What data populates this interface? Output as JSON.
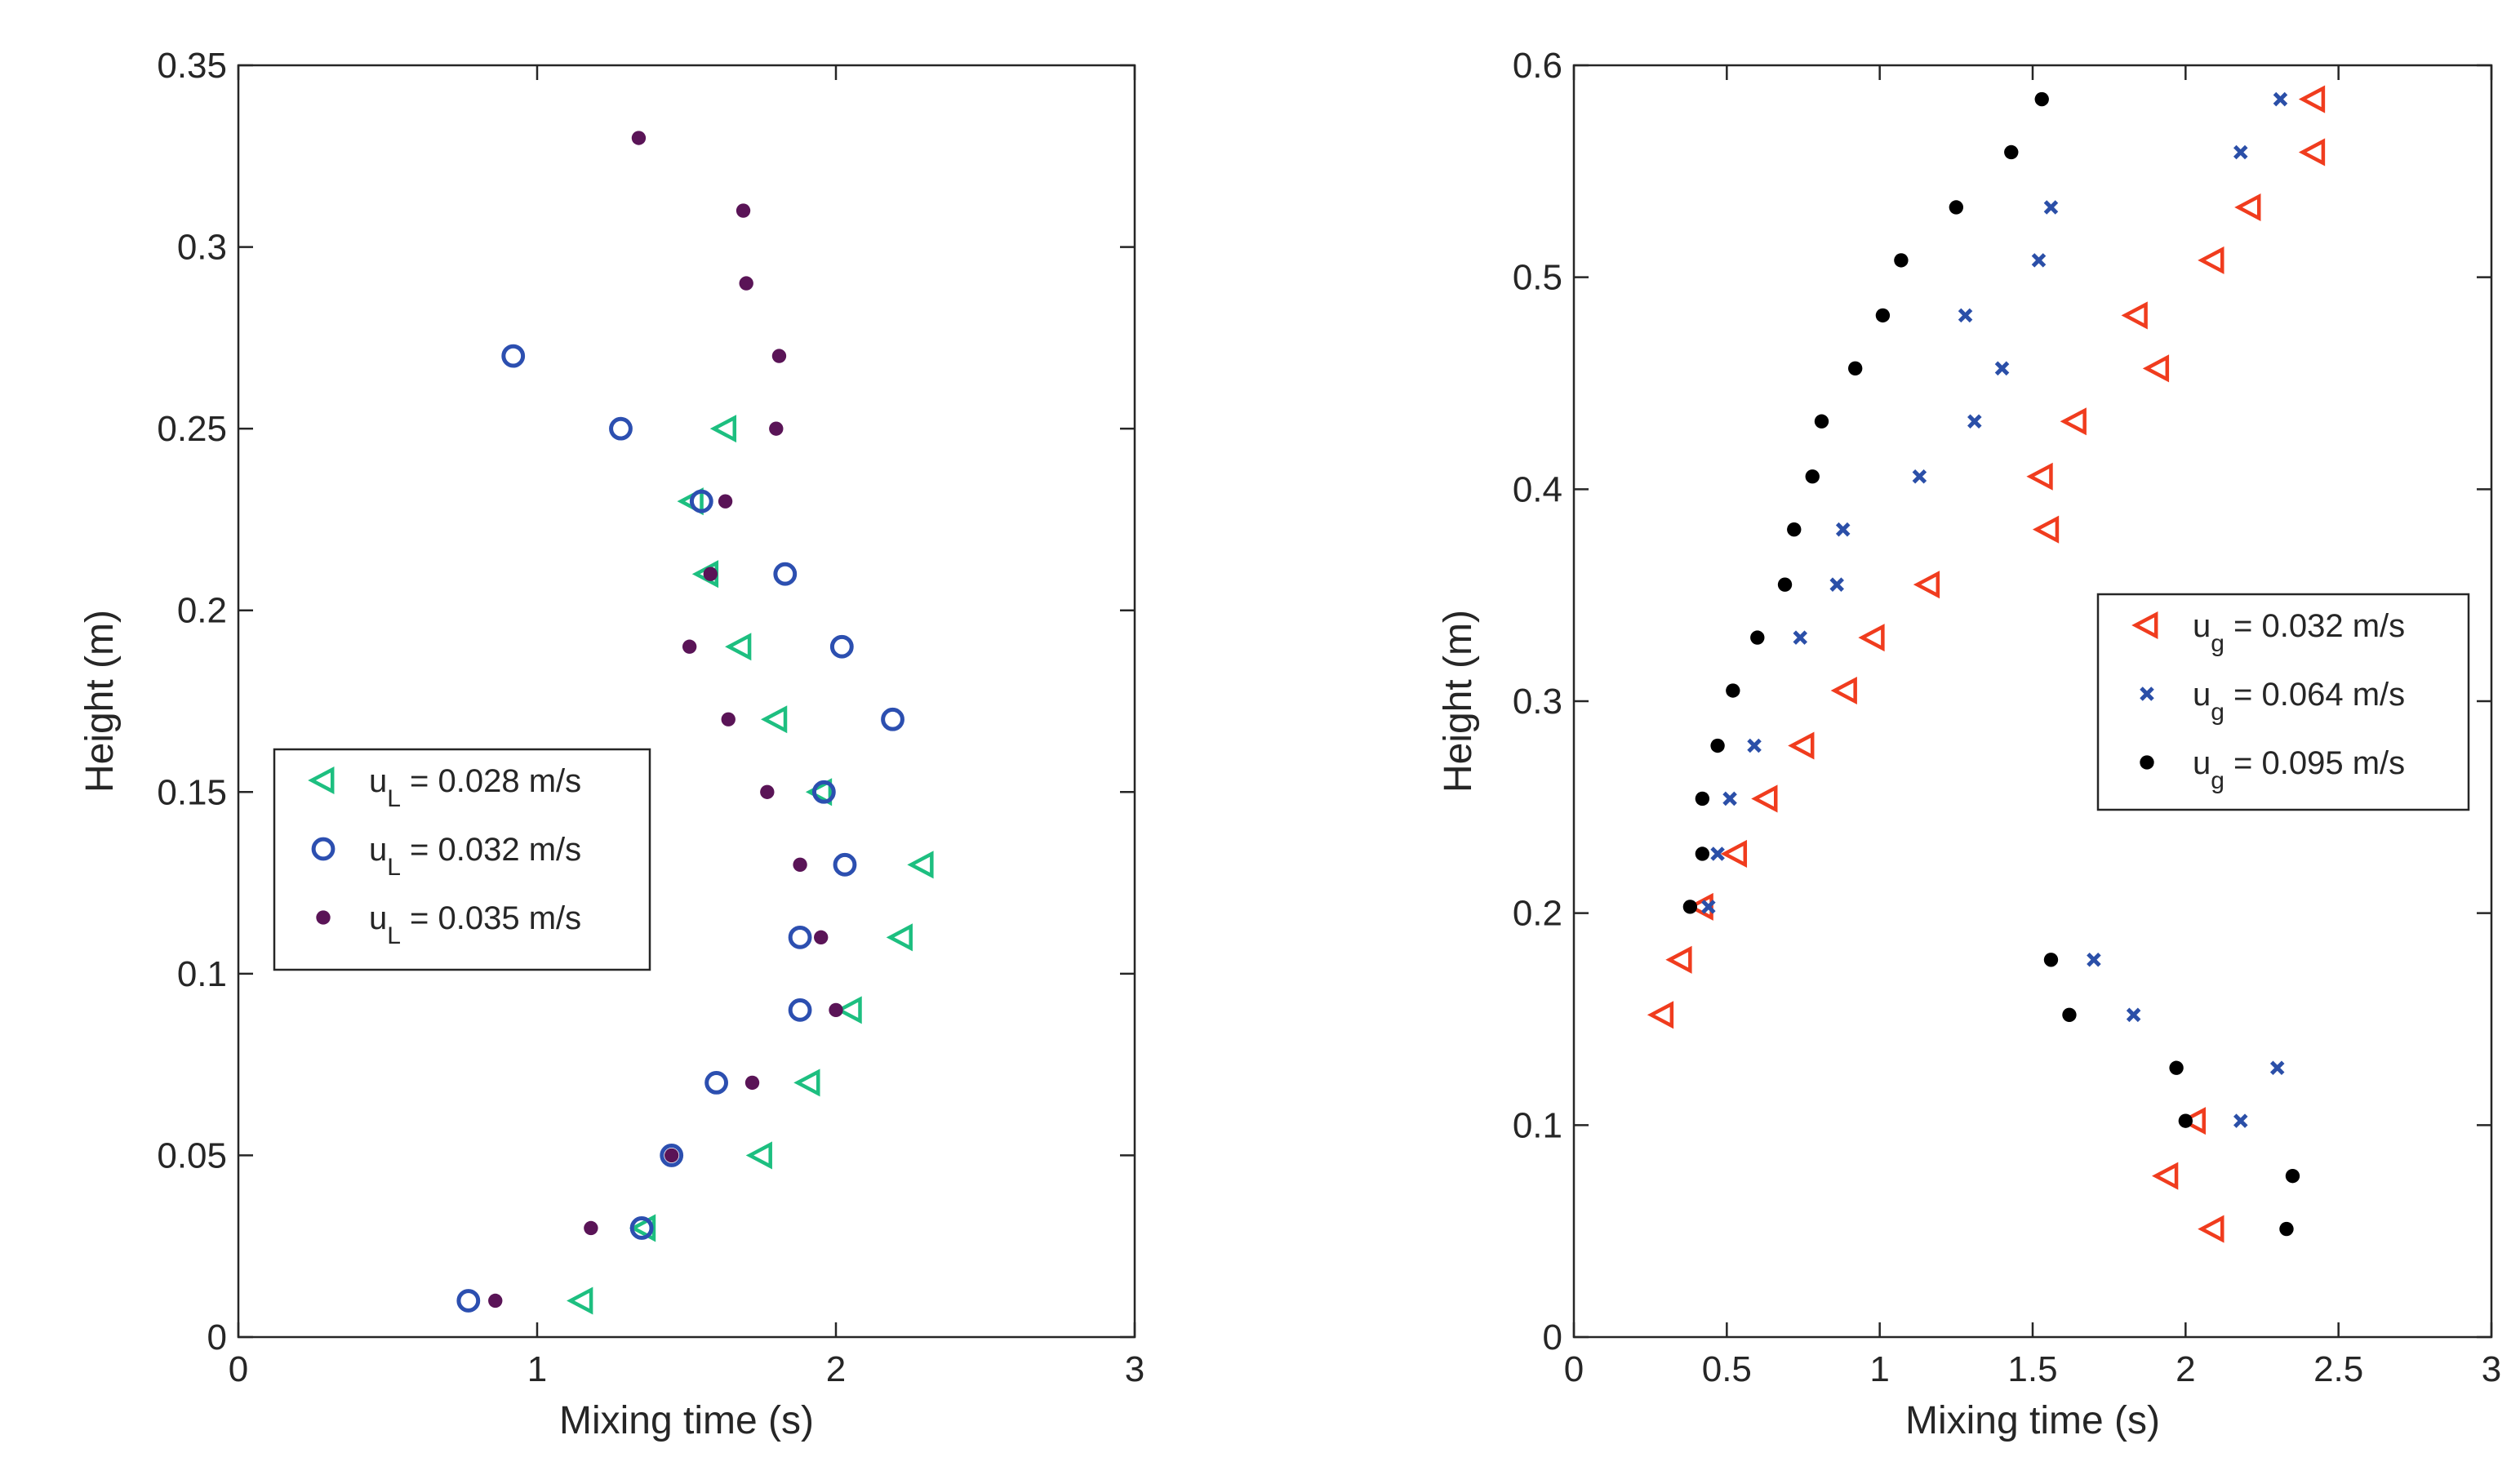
{
  "chart_data": [
    {
      "type": "scatter",
      "title": "",
      "xlabel": "Mixing time (s)",
      "ylabel": "Height (m)",
      "xlim": [
        0,
        3
      ],
      "ylim": [
        0,
        0.35
      ],
      "xticks": [
        "0",
        "1",
        "2",
        "3"
      ],
      "yticks": [
        "0",
        "0.05",
        "0.1",
        "0.15",
        "0.2",
        "0.25",
        "0.3",
        "0.35"
      ],
      "legend_position": "center-left",
      "series": [
        {
          "name": "u_L = 0.028 m/s",
          "label_main": "u",
          "label_sub": "L",
          "label_rest": " = 0.028 m/s",
          "marker": "triangle-left",
          "color": "#1dbf80",
          "points": [
            [
              1.15,
              0.01
            ],
            [
              1.36,
              0.03
            ],
            [
              1.75,
              0.05
            ],
            [
              1.91,
              0.07
            ],
            [
              2.05,
              0.09
            ],
            [
              2.22,
              0.11
            ],
            [
              2.29,
              0.13
            ],
            [
              1.95,
              0.15
            ],
            [
              1.8,
              0.17
            ],
            [
              1.68,
              0.19
            ],
            [
              1.57,
              0.21
            ],
            [
              1.52,
              0.23
            ],
            [
              1.63,
              0.25
            ]
          ]
        },
        {
          "name": "u_L = 0.032 m/s",
          "label_main": "u",
          "label_sub": "L",
          "label_rest": " = 0.032 m/s",
          "marker": "circle-open",
          "color": "#2c4fb0",
          "points": [
            [
              0.77,
              0.01
            ],
            [
              1.35,
              0.03
            ],
            [
              1.45,
              0.05
            ],
            [
              1.6,
              0.07
            ],
            [
              1.88,
              0.09
            ],
            [
              1.88,
              0.11
            ],
            [
              2.03,
              0.13
            ],
            [
              1.96,
              0.15
            ],
            [
              2.19,
              0.17
            ],
            [
              2.02,
              0.19
            ],
            [
              1.83,
              0.21
            ],
            [
              1.55,
              0.23
            ],
            [
              1.28,
              0.25
            ],
            [
              0.92,
              0.27
            ]
          ]
        },
        {
          "name": "u_L = 0.035 m/s",
          "label_main": "u",
          "label_sub": "L",
          "label_rest": " = 0.035 m/s",
          "marker": "dot",
          "color": "#5a1457",
          "points": [
            [
              0.86,
              0.01
            ],
            [
              1.18,
              0.03
            ],
            [
              1.45,
              0.05
            ],
            [
              1.72,
              0.07
            ],
            [
              2.0,
              0.09
            ],
            [
              1.95,
              0.11
            ],
            [
              1.88,
              0.13
            ],
            [
              1.77,
              0.15
            ],
            [
              1.64,
              0.17
            ],
            [
              1.51,
              0.19
            ],
            [
              1.58,
              0.21
            ],
            [
              1.63,
              0.23
            ],
            [
              1.8,
              0.25
            ],
            [
              1.81,
              0.27
            ],
            [
              1.7,
              0.29
            ],
            [
              1.69,
              0.31
            ],
            [
              1.34,
              0.33
            ]
          ]
        }
      ]
    },
    {
      "type": "scatter",
      "title": "",
      "xlabel": "Mixing time (s)",
      "ylabel": "Height (m)",
      "xlim": [
        0,
        3
      ],
      "ylim": [
        0,
        0.6
      ],
      "xticks": [
        "0",
        "0.5",
        "1",
        "1.5",
        "2",
        "2.5",
        "3"
      ],
      "yticks": [
        "0",
        "0.1",
        "0.2",
        "0.3",
        "0.4",
        "0.5",
        "0.6"
      ],
      "legend_position": "center-right",
      "series": [
        {
          "name": "u_g = 0.032 m/s",
          "label_main": "u",
          "label_sub": "g",
          "label_rest": " = 0.032 m/s",
          "marker": "triangle-left",
          "color": "#f03c1e",
          "points": [
            [
              0.29,
              0.152
            ],
            [
              0.35,
              0.178
            ],
            [
              0.42,
              0.203
            ],
            [
              0.53,
              0.228
            ],
            [
              0.63,
              0.254
            ],
            [
              0.75,
              0.279
            ],
            [
              0.89,
              0.305
            ],
            [
              0.98,
              0.33
            ],
            [
              1.16,
              0.355
            ],
            [
              1.55,
              0.381
            ],
            [
              1.53,
              0.406
            ],
            [
              1.64,
              0.432
            ],
            [
              1.91,
              0.457
            ],
            [
              1.84,
              0.482
            ],
            [
              2.09,
              0.508
            ],
            [
              2.21,
              0.533
            ],
            [
              2.42,
              0.559
            ],
            [
              2.42,
              0.584
            ],
            [
              2.09,
              0.051
            ],
            [
              1.94,
              0.076
            ],
            [
              2.03,
              0.102
            ]
          ]
        },
        {
          "name": "u_g = 0.064 m/s",
          "label_main": "u",
          "label_sub": "g",
          "label_rest": " = 0.064 m/s",
          "marker": "x",
          "color": "#2b4fa8",
          "points": [
            [
              0.44,
              0.203
            ],
            [
              0.47,
              0.228
            ],
            [
              0.51,
              0.254
            ],
            [
              0.59,
              0.279
            ],
            [
              0.74,
              0.33
            ],
            [
              0.86,
              0.355
            ],
            [
              0.88,
              0.381
            ],
            [
              1.13,
              0.406
            ],
            [
              1.31,
              0.432
            ],
            [
              1.4,
              0.457
            ],
            [
              1.28,
              0.482
            ],
            [
              1.52,
              0.508
            ],
            [
              1.56,
              0.533
            ],
            [
              2.18,
              0.559
            ],
            [
              2.31,
              0.584
            ],
            [
              1.7,
              0.178
            ],
            [
              1.83,
              0.152
            ],
            [
              2.3,
              0.127
            ],
            [
              2.18,
              0.102
            ]
          ]
        },
        {
          "name": "u_g = 0.095 m/s",
          "label_main": "u",
          "label_sub": "g",
          "label_rest": " = 0.095 m/s",
          "marker": "dot",
          "color": "#000000",
          "points": [
            [
              0.38,
              0.203
            ],
            [
              0.42,
              0.228
            ],
            [
              0.42,
              0.254
            ],
            [
              0.47,
              0.279
            ],
            [
              0.52,
              0.305
            ],
            [
              0.6,
              0.33
            ],
            [
              0.69,
              0.355
            ],
            [
              0.72,
              0.381
            ],
            [
              0.78,
              0.406
            ],
            [
              0.81,
              0.432
            ],
            [
              0.92,
              0.457
            ],
            [
              1.01,
              0.482
            ],
            [
              1.07,
              0.508
            ],
            [
              1.25,
              0.533
            ],
            [
              1.43,
              0.559
            ],
            [
              1.53,
              0.584
            ],
            [
              1.56,
              0.178
            ],
            [
              1.62,
              0.152
            ],
            [
              1.97,
              0.127
            ],
            [
              2.0,
              0.102
            ],
            [
              2.35,
              0.076
            ],
            [
              2.33,
              0.051
            ]
          ]
        }
      ]
    }
  ]
}
